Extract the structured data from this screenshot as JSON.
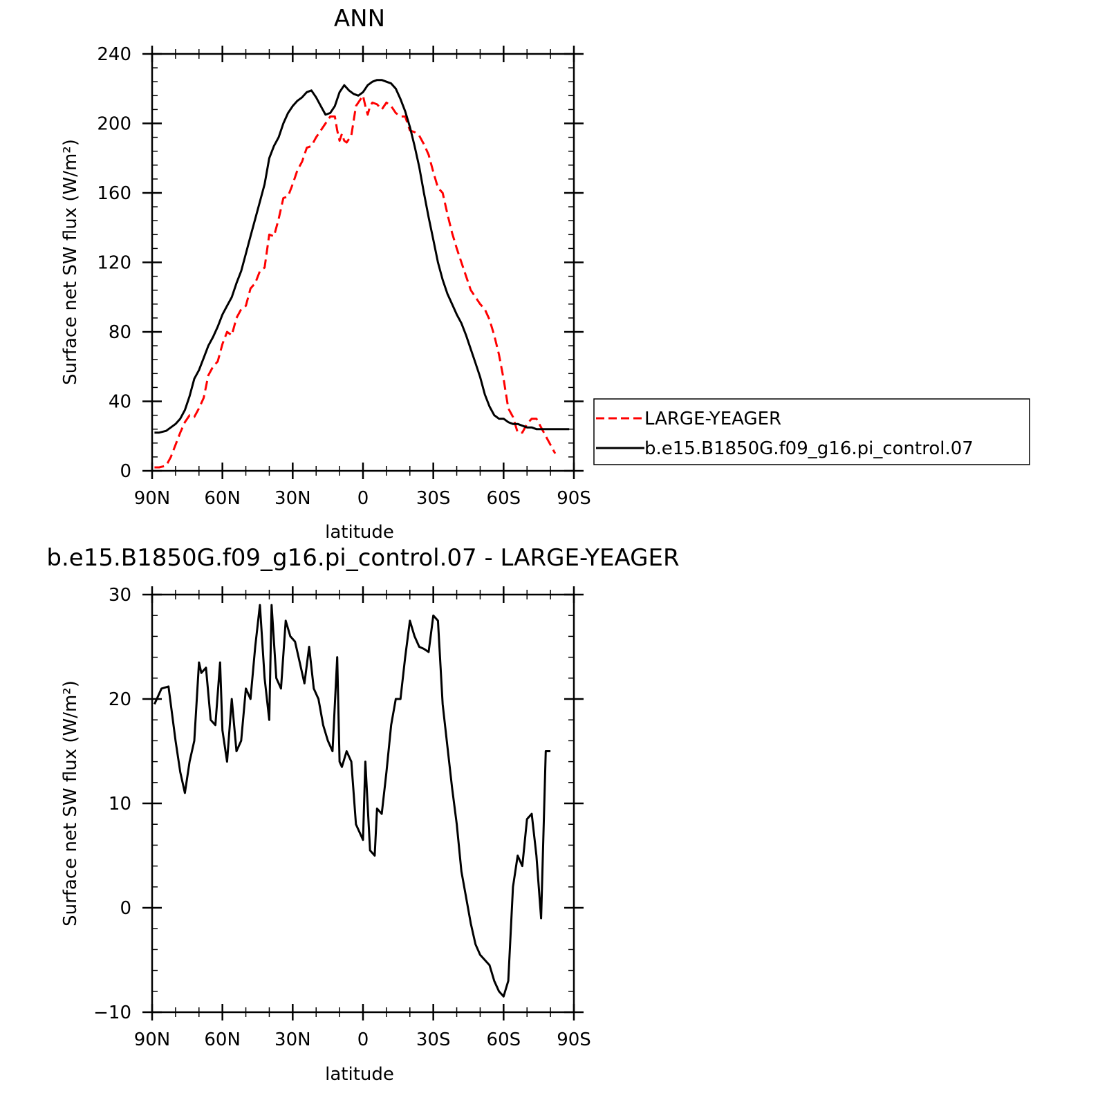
{
  "chart_data": [
    {
      "type": "line",
      "title": "ANN",
      "xlabel": "latitude",
      "ylabel": "Surface net SW flux (W/m²)",
      "xlim": [
        90,
        -90
      ],
      "ylim": [
        0,
        240
      ],
      "x_ticks": [
        90,
        60,
        30,
        0,
        -30,
        -60,
        -90
      ],
      "x_tick_labels": [
        "90N",
        "60N",
        "30N",
        "0",
        "30S",
        "60S",
        "90S"
      ],
      "y_ticks": [
        0,
        40,
        80,
        120,
        160,
        200,
        240
      ],
      "y_tick_labels": [
        "0",
        "40",
        "80",
        "120",
        "160",
        "200",
        "240"
      ],
      "grid": false,
      "legend_position": "right",
      "series": [
        {
          "name": "LARGE-YEAGER",
          "color": "#ff0000",
          "style": "dashed",
          "x": [
            89,
            87,
            84,
            82,
            80,
            78,
            76,
            74,
            72,
            70,
            68,
            66,
            64,
            62,
            60,
            58,
            56,
            54,
            52,
            50,
            48,
            46,
            44,
            42,
            40,
            38,
            36,
            34,
            32,
            30,
            28,
            26,
            24,
            22,
            20,
            18,
            16,
            14,
            12,
            11,
            10,
            9,
            8,
            7,
            5,
            3,
            1,
            0,
            -1,
            -2,
            -3,
            -4,
            -6,
            -8,
            -10,
            -12,
            -14,
            -16,
            -18,
            -20,
            -22,
            -24,
            -26,
            -28,
            -30,
            -32,
            -34,
            -36,
            -38,
            -40,
            -42,
            -44,
            -46,
            -48,
            -50,
            -52,
            -54,
            -56,
            -58,
            -60,
            -62,
            -64,
            -66,
            -68,
            -70,
            -72,
            -74,
            -76,
            -78,
            -80,
            -82
          ],
          "y": [
            2,
            2,
            3,
            8,
            15,
            22,
            28,
            32,
            31,
            36,
            42,
            55,
            60,
            63,
            73,
            80,
            78,
            88,
            93,
            95,
            105,
            108,
            115,
            117,
            136,
            135,
            145,
            157,
            158,
            165,
            173,
            178,
            186,
            187,
            192,
            196,
            200,
            204,
            204,
            196,
            190,
            194,
            190,
            189,
            193,
            210,
            214,
            216,
            210,
            205,
            210,
            212,
            211,
            208,
            212,
            210,
            206,
            204,
            204,
            196,
            195,
            193,
            188,
            182,
            172,
            163,
            160,
            148,
            137,
            128,
            120,
            112,
            104,
            100,
            96,
            93,
            87,
            78,
            67,
            53,
            36,
            31,
            22,
            22,
            27,
            30,
            30,
            25,
            20,
            15,
            10
          ]
        },
        {
          "name": "b.e15.B1850G.f09_g16.pi_control.07",
          "color": "#000000",
          "style": "solid",
          "x": [
            89,
            87,
            84,
            82,
            80,
            78,
            76,
            74,
            72,
            70,
            68,
            66,
            64,
            62,
            60,
            58,
            56,
            54,
            52,
            50,
            48,
            46,
            44,
            42,
            40,
            38,
            36,
            34,
            32,
            30,
            28,
            26,
            24,
            22,
            20,
            18,
            16,
            14,
            12,
            10,
            8,
            6,
            4,
            2,
            0,
            -2,
            -4,
            -6,
            -8,
            -10,
            -12,
            -14,
            -16,
            -18,
            -20,
            -22,
            -24,
            -26,
            -28,
            -30,
            -32,
            -34,
            -36,
            -38,
            -40,
            -42,
            -44,
            -46,
            -48,
            -50,
            -52,
            -54,
            -56,
            -58,
            -60,
            -62,
            -64,
            -66,
            -68,
            -70,
            -72,
            -74,
            -76,
            -78,
            -80,
            -82,
            -84,
            -86,
            -88
          ],
          "y": [
            22,
            22,
            23,
            25,
            27,
            30,
            35,
            43,
            53,
            58,
            65,
            72,
            77,
            83,
            90,
            95,
            100,
            108,
            115,
            125,
            135,
            145,
            155,
            165,
            180,
            187,
            192,
            200,
            206,
            210,
            213,
            215,
            218,
            219,
            215,
            210,
            205,
            206,
            210,
            218,
            222,
            219,
            217,
            216,
            218,
            222,
            224,
            225,
            225,
            224,
            223,
            220,
            214,
            207,
            198,
            187,
            175,
            160,
            146,
            133,
            120,
            110,
            102,
            96,
            90,
            85,
            78,
            70,
            62,
            54,
            44,
            37,
            32,
            30,
            30,
            28,
            27,
            27,
            26,
            25,
            25,
            24,
            24,
            24,
            24,
            24,
            24,
            24,
            24
          ]
        }
      ]
    },
    {
      "type": "line",
      "title": "b.e15.B1850G.f09_g16.pi_control.07 - LARGE-YEAGER",
      "xlabel": "latitude",
      "ylabel": "Surface net SW flux (W/m²)",
      "xlim": [
        90,
        -90
      ],
      "ylim": [
        -10,
        30
      ],
      "x_ticks": [
        90,
        60,
        30,
        0,
        -30,
        -60,
        -90
      ],
      "x_tick_labels": [
        "90N",
        "60N",
        "30N",
        "0",
        "30S",
        "60S",
        "90S"
      ],
      "y_ticks": [
        -10,
        0,
        10,
        20,
        30
      ],
      "y_tick_labels": [
        "−10",
        "0",
        "10",
        "20",
        "30"
      ],
      "grid": false,
      "series": [
        {
          "color": "#000000",
          "style": "solid",
          "x": [
            89,
            86,
            83,
            80,
            78,
            76,
            74,
            72,
            70,
            69,
            67,
            65,
            63,
            61,
            60,
            58,
            56,
            54,
            52,
            50,
            48,
            46,
            44,
            42,
            40,
            39,
            37,
            35,
            33,
            31,
            29,
            27,
            25,
            23,
            21,
            19,
            17,
            15,
            13,
            11,
            10,
            9,
            7,
            5,
            3,
            1,
            0,
            -1,
            -3,
            -5,
            -6,
            -8,
            -10,
            -12,
            -14,
            -16,
            -18,
            -20,
            -22,
            -24,
            -26,
            -28,
            -30,
            -32,
            -34,
            -36,
            -38,
            -40,
            -42,
            -44,
            -46,
            -48,
            -50,
            -52,
            -54,
            -56,
            -58,
            -60,
            -62,
            -64,
            -66,
            -68,
            -70,
            -72,
            -74,
            -76,
            -78,
            -80
          ],
          "y": [
            19.5,
            21,
            21.2,
            16,
            13,
            11,
            14,
            16,
            23.5,
            22.5,
            23,
            18,
            17.5,
            23.5,
            17,
            14,
            20,
            15,
            16,
            21,
            20,
            25,
            29,
            22,
            18,
            29,
            22,
            21,
            27.5,
            26,
            25.5,
            23.5,
            21.5,
            25,
            21,
            20,
            17.5,
            16,
            15,
            24,
            14,
            13.5,
            15,
            14,
            8,
            7,
            6.5,
            14,
            5.5,
            5,
            9.5,
            9,
            13,
            17.5,
            20,
            20,
            24,
            27.5,
            26,
            25,
            24.8,
            24.5,
            28,
            27.5,
            19.5,
            15.5,
            11.5,
            8,
            3.5,
            1,
            -1.5,
            -3.5,
            -4.5,
            -5,
            -5.5,
            -7,
            -8,
            -8.5,
            -7,
            2,
            5,
            4,
            8.5,
            9,
            5,
            -1,
            15,
            15
          ]
        }
      ]
    }
  ]
}
